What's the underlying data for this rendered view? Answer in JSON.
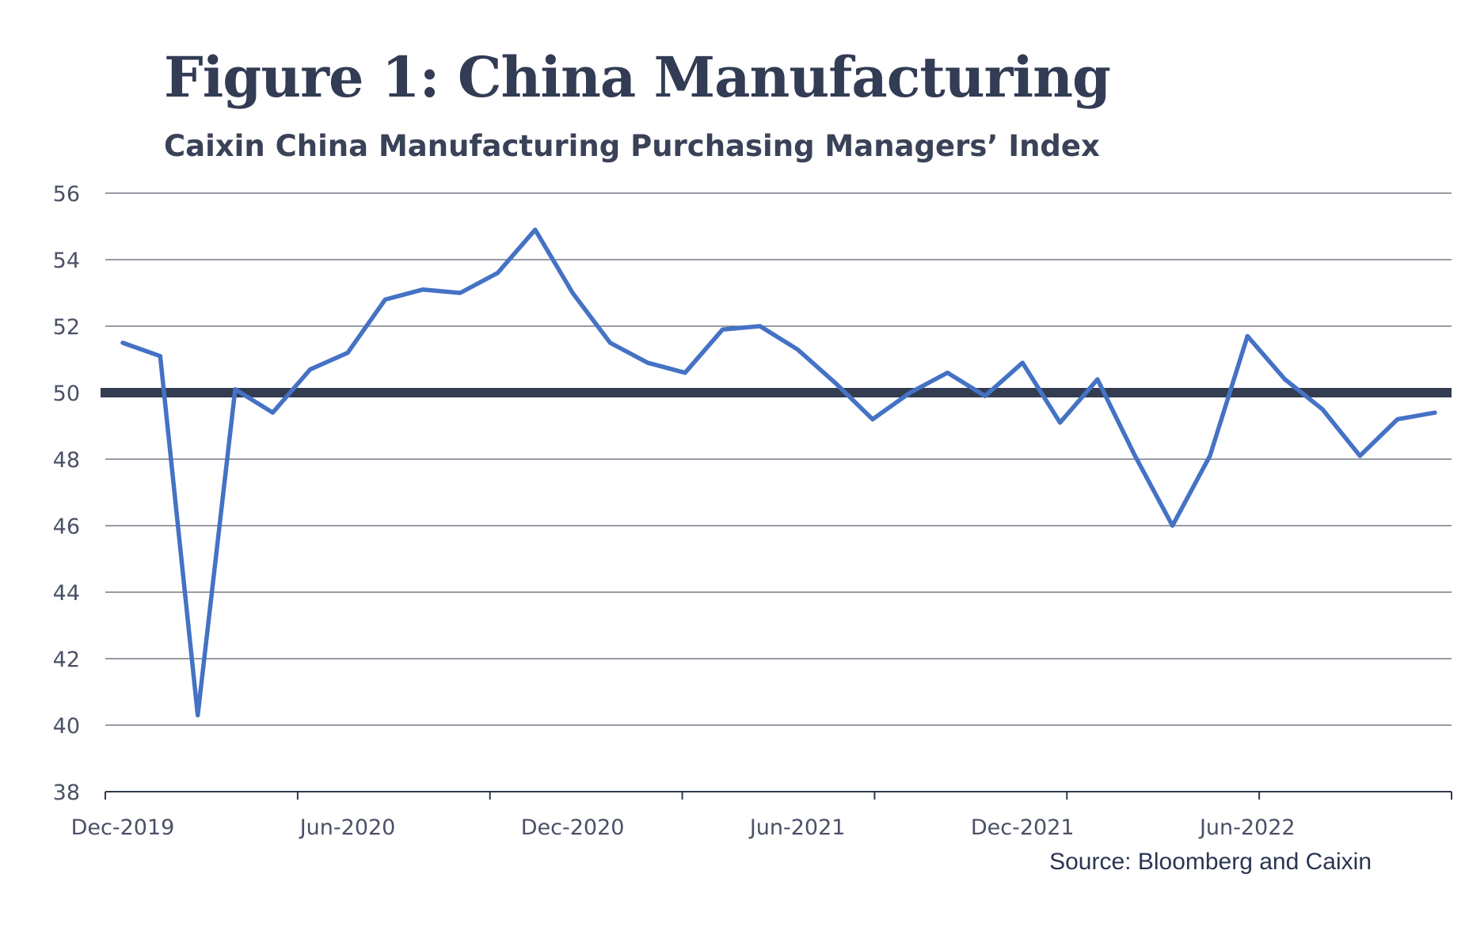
{
  "chart_data": {
    "type": "line",
    "title": "Figure 1: China Manufacturing",
    "subtitle": "Caixin China Manufacturing Purchasing Managers’ Index",
    "xlabel": "",
    "ylabel": "",
    "ylim": [
      38,
      56
    ],
    "yticks": [
      "56",
      "54",
      "52",
      "50",
      "48",
      "46",
      "44",
      "42",
      "40",
      "38"
    ],
    "xticks": [
      "Dec-2019",
      "Jun-2020",
      "Dec-2020",
      "Jun-2021",
      "Dec-2021",
      "Jun-2022"
    ],
    "grid": "horizontal",
    "x": [
      "Dec-2019",
      "Jan-2020",
      "Feb-2020",
      "Mar-2020",
      "Apr-2020",
      "May-2020",
      "Jun-2020",
      "Jul-2020",
      "Aug-2020",
      "Sep-2020",
      "Oct-2020",
      "Nov-2020",
      "Dec-2020",
      "Jan-2021",
      "Feb-2021",
      "Mar-2021",
      "Apr-2021",
      "May-2021",
      "Jun-2021",
      "Jul-2021",
      "Aug-2021",
      "Sep-2021",
      "Oct-2021",
      "Nov-2021",
      "Dec-2021",
      "Jan-2022",
      "Feb-2022",
      "Mar-2022",
      "Apr-2022",
      "May-2022",
      "Jun-2022",
      "Jul-2022",
      "Aug-2022",
      "Sep-2022",
      "Oct-2022",
      "Nov-2022"
    ],
    "series": [
      {
        "values": [
          51.5,
          51.1,
          40.3,
          50.1,
          49.4,
          50.7,
          51.2,
          52.8,
          53.1,
          53.0,
          53.6,
          54.9,
          53.0,
          51.5,
          50.9,
          50.6,
          51.9,
          52.0,
          51.3,
          50.3,
          49.2,
          50.0,
          50.6,
          49.9,
          50.9,
          49.1,
          50.4,
          48.1,
          46.0,
          48.1,
          51.7,
          50.4,
          49.5,
          48.1,
          49.2,
          49.4
        ],
        "color": "#4472c4"
      }
    ],
    "reference_line": {
      "value": 50,
      "color": "#333c50"
    },
    "source": "Source: Bloomberg and Caixin"
  }
}
